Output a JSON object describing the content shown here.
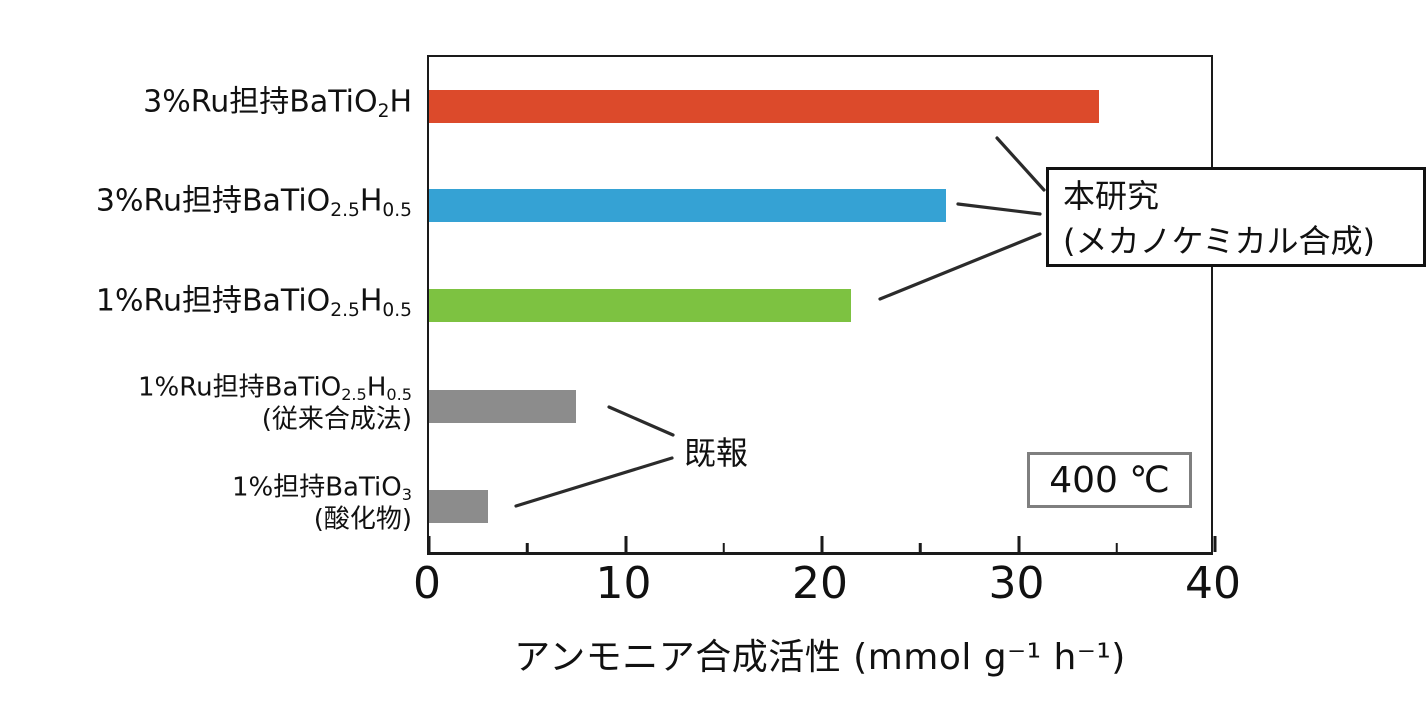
{
  "chart_data": {
    "type": "bar",
    "orientation": "horizontal",
    "xlabel": "アンモニア合成活性 (mmol g⁻¹ h⁻¹)",
    "xlim": [
      0,
      40
    ],
    "x_major_ticks": [
      0,
      10,
      20,
      30,
      40
    ],
    "x_minor_ticks": [
      5,
      15,
      25,
      35
    ],
    "grid": false,
    "legend": "none",
    "categories": [
      "3%Ru担持BaTiO₂H",
      "3%Ru担持BaTiO₂.₅H₀.₅",
      "1%Ru担持BaTiO₂.₅H₀.₅",
      "1%Ru担持BaTiO₂.₅H₀.₅ (従来合成法)",
      "1%担持BaTiO₃ (酸化物)"
    ],
    "values": [
      34.1,
      26.3,
      21.5,
      7.5,
      3.0
    ],
    "bar_colors": [
      "#DC4A2B",
      "#35A2D4",
      "#7DC241",
      "#8C8C8C",
      "#8C8C8C"
    ],
    "bars": [
      {
        "key": "3ru-batio2h",
        "label_segments": [
          {
            "t": "3%Ru担持BaTiO"
          },
          {
            "t": "2",
            "sub": true
          },
          {
            "t": "H"
          }
        ],
        "note": "",
        "value": 34.1,
        "color": "#DC4A2B",
        "group": "本研究",
        "small": false
      },
      {
        "key": "3ru-batio25h05",
        "label_segments": [
          {
            "t": "3%Ru担持BaTiO"
          },
          {
            "t": "2.5",
            "sub": true
          },
          {
            "t": "H"
          },
          {
            "t": "0.5",
            "sub": true
          }
        ],
        "note": "",
        "value": 26.3,
        "color": "#35A2D4",
        "group": "本研究",
        "small": false
      },
      {
        "key": "1ru-batio25h05",
        "label_segments": [
          {
            "t": "1%Ru担持BaTiO"
          },
          {
            "t": "2.5",
            "sub": true
          },
          {
            "t": "H"
          },
          {
            "t": "0.5",
            "sub": true
          }
        ],
        "note": "",
        "value": 21.5,
        "color": "#7DC241",
        "group": "本研究",
        "small": false
      },
      {
        "key": "1ru-batio25h05-conventional",
        "label_segments": [
          {
            "t": "1%Ru担持BaTiO"
          },
          {
            "t": "2.5",
            "sub": true
          },
          {
            "t": "H"
          },
          {
            "t": "0.5",
            "sub": true
          }
        ],
        "note": "(従来合成法)",
        "value": 7.5,
        "color": "#8C8C8C",
        "group": "既報",
        "small": true
      },
      {
        "key": "1-batio3-oxide",
        "label_segments": [
          {
            "t": "1%担持BaTiO"
          },
          {
            "t": "3",
            "sub": true
          }
        ],
        "note": "(酸化物)",
        "value": 3.0,
        "color": "#8C8C8C",
        "group": "既報",
        "small": true
      }
    ],
    "annotations": {
      "new_work_line1": "本研究",
      "new_work_line2": "(メカノケミカル合成)",
      "prior_work": "既報",
      "temperature": "400 ℃"
    }
  },
  "colors": {
    "bar_red": "#DC4A2B",
    "bar_blue": "#35A2D4",
    "bar_green": "#7DC241",
    "bar_gray": "#8C8C8C",
    "frame": "#1a1a1a",
    "temp_box_border": "#7f7f7f"
  }
}
